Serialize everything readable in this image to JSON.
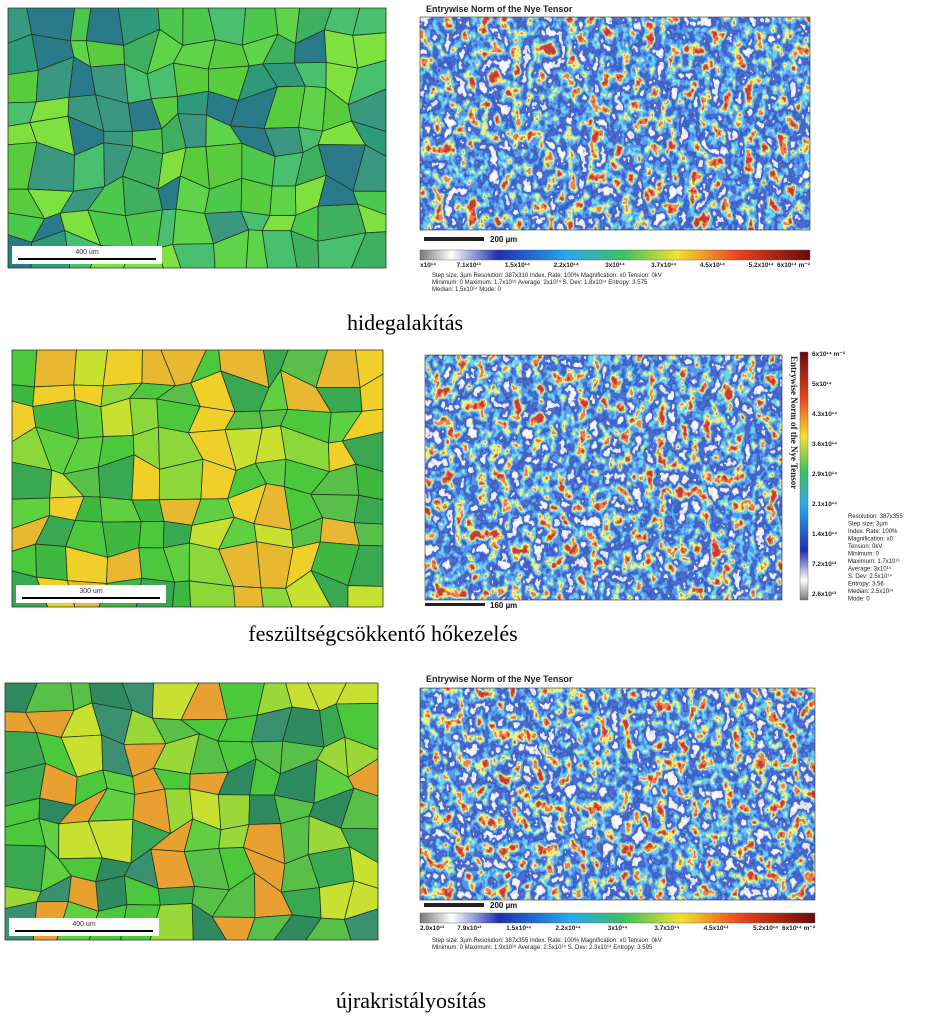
{
  "panels": [
    {
      "caption": "hidegalakítás",
      "grain_map": {
        "scale_label": "400 um"
      },
      "nye_map": {
        "title": "Entrywise Norm of the Nye Tensor",
        "scale_label": "200 µm",
        "colorbar_labels": [
          "x10¹⁴",
          "7.1x10¹³",
          "1.5x10¹⁴",
          "2.2x10¹⁴",
          "3x10¹⁴",
          "3.7x10¹⁴",
          "4.5x10¹⁴",
          "5.2x10¹⁴",
          "6x10¹⁴ m⁻²"
        ],
        "stats": [
          "Step size: 3µm    Resolution: 387x310    Index. Rate: 100%    Magnification: x0    Tension: 0kV",
          "Minimum: 0    Maximum: 1.7x10¹⁶    Average: 2x10¹⁴    S. Dev: 1.8x10¹⁴    Entropy: 3.575",
          "Median: 1.5x10¹⁴    Mode: 0"
        ]
      }
    },
    {
      "caption": "feszültségcsökkentő hőkezelés",
      "grain_map": {
        "scale_label": "300 um"
      },
      "nye_map": {
        "title": "Entrywise Norm of the Nye Tensor",
        "scale_label": "160 µm",
        "colorbar_labels": [
          "6x10¹⁴ m⁻²",
          "5x10¹⁴",
          "4.3x10¹⁴",
          "3.6x10¹⁴",
          "2.9x10¹⁴",
          "2.1x10¹⁴",
          "1.4x10¹⁴",
          "7.2x10¹³",
          "2.6x10¹³"
        ],
        "stats": [
          "Resolution: 387x355",
          "Step size: 3µm",
          "Index. Rate: 100%",
          "Magnification: x0",
          "Tension: 0kV",
          "Minimum: 0",
          "Maximum: 1.7x10¹⁶",
          "Average: 3x10¹⁴",
          "S. Dev: 2.5x10¹⁴",
          "Entropy: 3.56",
          "Median: 2.5x10¹⁴",
          "Mode: 0"
        ]
      }
    },
    {
      "caption": "újrakristályosítás",
      "grain_map": {
        "scale_label": "400 um"
      },
      "nye_map": {
        "title": "Entrywise Norm of the Nye Tensor",
        "scale_label": "200 µm",
        "colorbar_labels": [
          "2.0x10¹³",
          "7.9x10¹³",
          "1.5x10¹⁴",
          "2.2x10¹⁴",
          "3x10¹⁴",
          "3.7x10¹⁴",
          "4.5x10¹⁴",
          "5.2x10¹⁴",
          "6x10¹⁴ m⁻²"
        ],
        "stats": [
          "Step size: 3µm    Resolution: 387x355    Index. Rate: 100%    Magnification: x0    Tension: 0kV",
          "Minimum: 0    Maximum: 1.9x10¹⁶    Average: 2.5x10¹⁴    S. Dev: 2.3x10¹⁴    Entropy: 3.595"
        ]
      }
    }
  ]
}
